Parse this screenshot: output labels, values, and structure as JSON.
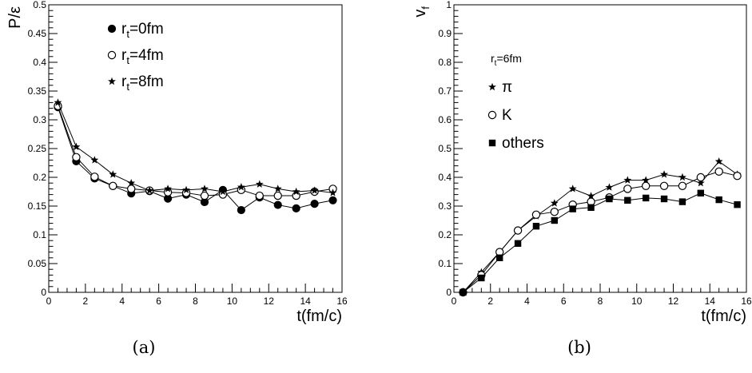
{
  "chart_data": [
    {
      "type": "line",
      "caption": "(a)",
      "title": "",
      "xlabel": "t(fm/c)",
      "ylabel": "P/ε",
      "xlim": [
        0,
        16
      ],
      "ylim": [
        0,
        0.5
      ],
      "xticks": [
        "0",
        "2",
        "4",
        "6",
        "8",
        "10",
        "12",
        "14",
        "16"
      ],
      "yticks": [
        "0",
        "0.05",
        "0.1",
        "0.15",
        "0.2",
        "0.25",
        "0.3",
        "0.35",
        "0.4",
        "0.45",
        "0.5"
      ],
      "grid": false,
      "legend": {
        "placement": "top-center",
        "note": ""
      },
      "x": [
        0.5,
        1.5,
        2.5,
        3.5,
        4.5,
        5.5,
        6.5,
        7.5,
        8.5,
        9.5,
        10.5,
        11.5,
        12.5,
        13.5,
        14.5,
        15.5
      ],
      "series": [
        {
          "name": "r_t=0fm",
          "label_main": "r",
          "label_sub": "t",
          "label_rest": "=0fm",
          "marker": "filled-circle",
          "values": [
            0.322,
            0.228,
            0.198,
            0.185,
            0.172,
            0.176,
            0.163,
            0.17,
            0.157,
            0.178,
            0.143,
            0.165,
            0.152,
            0.146,
            0.154,
            0.16
          ]
        },
        {
          "name": "r_t=4fm",
          "label_main": "r",
          "label_sub": "t",
          "label_rest": "=4fm",
          "marker": "open-circle",
          "values": [
            0.324,
            0.235,
            0.201,
            0.185,
            0.18,
            0.177,
            0.174,
            0.173,
            0.168,
            0.17,
            0.178,
            0.168,
            0.168,
            0.168,
            0.175,
            0.18
          ]
        },
        {
          "name": "r_t=8fm",
          "label_main": "r",
          "label_sub": "t",
          "label_rest": "=8fm",
          "marker": "star",
          "values": [
            0.33,
            0.253,
            0.23,
            0.205,
            0.19,
            0.177,
            0.18,
            0.178,
            0.18,
            0.175,
            0.183,
            0.188,
            0.18,
            0.175,
            0.177,
            0.173
          ]
        }
      ]
    },
    {
      "type": "line",
      "caption": "(b)",
      "title": "",
      "xlabel": "t(fm/c)",
      "ylabel": "v",
      "ylabel_sub": "f",
      "xlim": [
        0,
        16
      ],
      "ylim": [
        0,
        1
      ],
      "xticks": [
        "0",
        "2",
        "4",
        "6",
        "8",
        "10",
        "12",
        "14",
        "16"
      ],
      "yticks": [
        "0",
        "0.1",
        "0.2",
        "0.3",
        "0.4",
        "0.5",
        "0.6",
        "0.7",
        "0.8",
        "0.9",
        "1"
      ],
      "grid": false,
      "legend": {
        "placement": "top-center",
        "note": "r_t=6fm",
        "note_main": "r",
        "note_sub": "t",
        "note_rest": "=6fm"
      },
      "x": [
        0.5,
        1.5,
        2.5,
        3.5,
        4.5,
        5.5,
        6.5,
        7.5,
        8.5,
        9.5,
        10.5,
        11.5,
        12.5,
        13.5,
        14.5,
        15.5
      ],
      "series": [
        {
          "name": "π",
          "marker": "star",
          "values": [
            0.0,
            0.07,
            0.14,
            0.215,
            0.265,
            0.31,
            0.36,
            0.335,
            0.365,
            0.39,
            0.39,
            0.41,
            0.4,
            0.38,
            0.455,
            0.41
          ]
        },
        {
          "name": "K",
          "marker": "open-circle",
          "values": [
            0.0,
            0.06,
            0.14,
            0.215,
            0.27,
            0.28,
            0.305,
            0.315,
            0.33,
            0.36,
            0.37,
            0.37,
            0.37,
            0.4,
            0.42,
            0.405
          ]
        },
        {
          "name": "others",
          "marker": "filled-square",
          "values": [
            0.0,
            0.05,
            0.12,
            0.17,
            0.23,
            0.25,
            0.29,
            0.295,
            0.325,
            0.32,
            0.328,
            0.325,
            0.315,
            0.345,
            0.322,
            0.305
          ]
        }
      ]
    }
  ]
}
